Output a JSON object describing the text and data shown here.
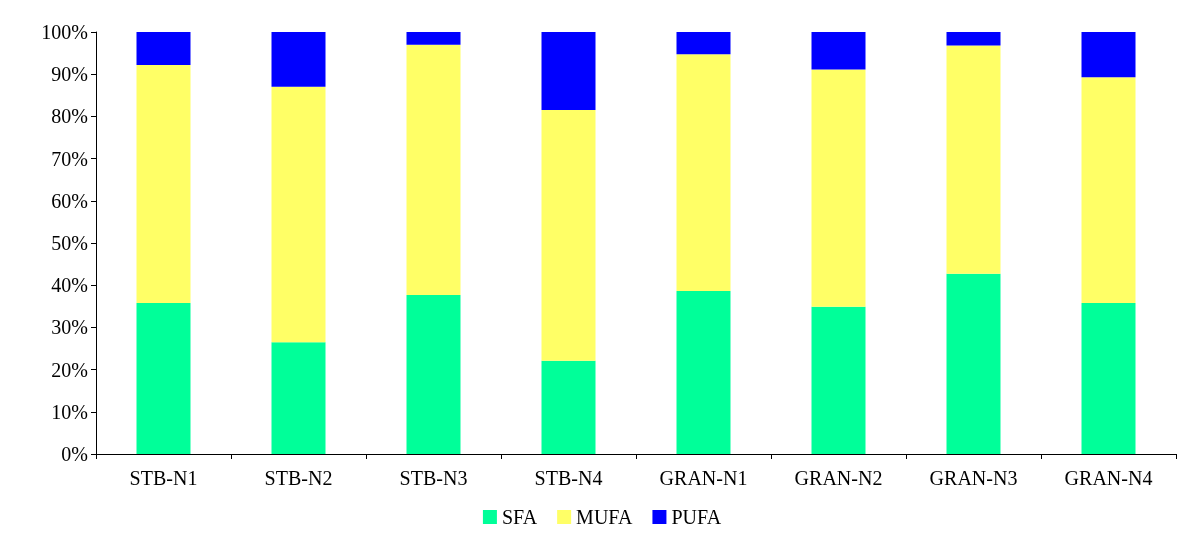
{
  "chart_data": {
    "type": "bar",
    "stacked": true,
    "categories": [
      "STB-N1",
      "STB-N2",
      "STB-N3",
      "STB-N4",
      "GRAN-N1",
      "GRAN-N2",
      "GRAN-N3",
      "GRAN-N4"
    ],
    "series": [
      {
        "name": "SFA",
        "color": "#00ff99",
        "values": [
          35.8,
          26.5,
          37.7,
          22.1,
          38.6,
          34.9,
          42.7,
          35.8
        ]
      },
      {
        "name": "MUFA",
        "color": "#ffff66",
        "values": [
          56.4,
          60.5,
          59.3,
          59.4,
          56.1,
          56.2,
          54.1,
          53.5
        ]
      },
      {
        "name": "PUFA",
        "color": "#0000ff",
        "values": [
          7.8,
          13.0,
          3.0,
          18.5,
          5.3,
          8.9,
          3.2,
          10.7
        ]
      }
    ],
    "ylim": [
      0,
      100
    ],
    "yticks": [
      {
        "value": 0,
        "label": "0%"
      },
      {
        "value": 10,
        "label": "10%"
      },
      {
        "value": 20,
        "label": "20%"
      },
      {
        "value": 30,
        "label": "30%"
      },
      {
        "value": 40,
        "label": "40%"
      },
      {
        "value": 50,
        "label": "50%"
      },
      {
        "value": 60,
        "label": "60%"
      },
      {
        "value": 70,
        "label": "70%"
      },
      {
        "value": 80,
        "label": "80%"
      },
      {
        "value": 90,
        "label": "90%"
      },
      {
        "value": 100,
        "label": "100%"
      }
    ],
    "grid": false,
    "legend": "bottom"
  }
}
